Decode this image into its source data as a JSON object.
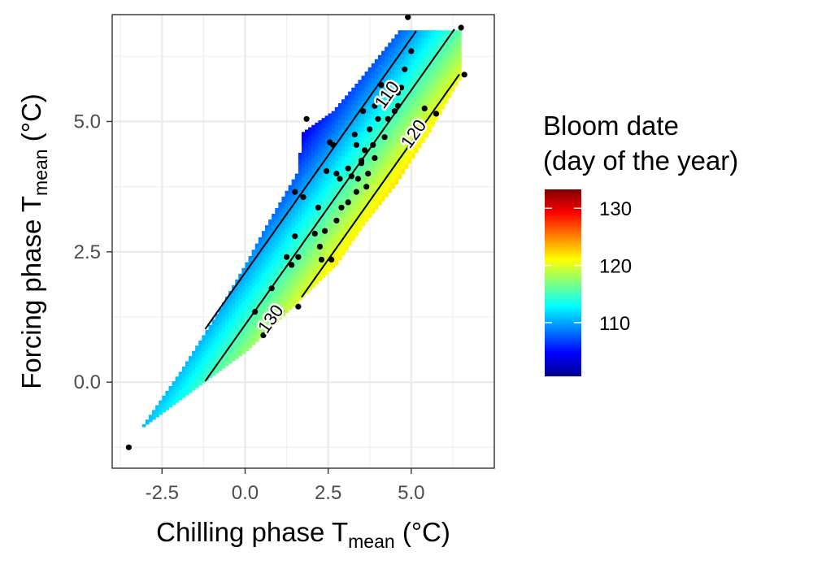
{
  "chart_data": {
    "type": "heatmap",
    "xlabel": {
      "main": "Chilling phase T",
      "sub": "mean",
      "unit": " (°C)"
    },
    "ylabel": {
      "main": "Forcing phase T",
      "sub": "mean",
      "unit": " (°C)"
    },
    "xlim": [
      -4.0,
      7.5
    ],
    "ylim": [
      -1.65,
      7.05
    ],
    "x_ticks": [
      -2.5,
      0.0,
      2.5,
      5.0
    ],
    "x_tick_labels": [
      "-2.5",
      "0.0",
      "2.5",
      "5.0"
    ],
    "y_ticks": [
      0.0,
      2.5,
      5.0
    ],
    "y_tick_labels": [
      "0.0",
      "2.5",
      "5.0"
    ],
    "grid": true,
    "legend": {
      "title_lines": [
        "Bloom date",
        "(day of the year)"
      ],
      "labels": [
        "130",
        "120",
        "110"
      ],
      "label_values": [
        130,
        120,
        110
      ],
      "range": [
        100.6,
        133.3
      ],
      "placement": "right"
    },
    "colorscale": [
      "#00008f",
      "#0000ff",
      "#0080ff",
      "#00ffff",
      "#80ff80",
      "#ffff00",
      "#ff8000",
      "#ff0000",
      "#800000"
    ],
    "surface": {
      "description_formula": "bloom = 120.5 + 4.5*x - 5*y",
      "region_lower_edge": [
        [
          -3.2,
          -0.9
        ],
        [
          0.0,
          0.6
        ],
        [
          2.7,
          2.25
        ],
        [
          3.5,
          3.0
        ],
        [
          4.5,
          3.8
        ],
        [
          5.5,
          4.8
        ],
        [
          6.4,
          5.8
        ]
      ],
      "region_upper_edge": [
        [
          -3.2,
          -0.9
        ],
        [
          -2.0,
          0.2
        ],
        [
          -1.0,
          1.2
        ],
        [
          0.0,
          2.3
        ],
        [
          0.5,
          2.9
        ],
        [
          1.5,
          4.0
        ],
        [
          1.7,
          4.8
        ],
        [
          2.6,
          5.2
        ],
        [
          3.4,
          5.8
        ],
        [
          4.6,
          6.75
        ],
        [
          6.4,
          6.75
        ]
      ]
    },
    "contours": [
      {
        "level": 130,
        "label": "130",
        "label_at": [
          0.8,
          1.2
        ]
      },
      {
        "level": 120,
        "label": "120",
        "label_at": [
          5.1,
          4.75
        ]
      },
      {
        "level": 110,
        "label": "110",
        "label_at": [
          4.3,
          5.5
        ]
      },
      {
        "level": 125,
        "label": ""
      },
      {
        "level": 115,
        "label": ""
      }
    ],
    "points": [
      [
        -3.5,
        -1.25
      ],
      [
        0.3,
        1.35
      ],
      [
        0.55,
        0.9
      ],
      [
        0.8,
        1.8
      ],
      [
        0.9,
        1.3
      ],
      [
        1.1,
        1.35
      ],
      [
        1.25,
        2.4
      ],
      [
        1.4,
        2.25
      ],
      [
        1.5,
        2.8
      ],
      [
        1.6,
        1.45
      ],
      [
        1.5,
        3.65
      ],
      [
        1.75,
        3.55
      ],
      [
        1.85,
        5.05
      ],
      [
        1.6,
        2.4
      ],
      [
        2.1,
        2.85
      ],
      [
        2.2,
        3.35
      ],
      [
        2.25,
        2.6
      ],
      [
        2.3,
        2.35
      ],
      [
        2.4,
        2.9
      ],
      [
        2.45,
        4.05
      ],
      [
        2.55,
        4.6
      ],
      [
        2.6,
        2.35
      ],
      [
        2.65,
        4.55
      ],
      [
        2.75,
        3.1
      ],
      [
        2.75,
        4.0
      ],
      [
        2.9,
        3.35
      ],
      [
        3.1,
        3.45
      ],
      [
        3.1,
        4.1
      ],
      [
        3.2,
        3.95
      ],
      [
        3.3,
        4.75
      ],
      [
        3.35,
        4.55
      ],
      [
        3.4,
        3.9
      ],
      [
        3.5,
        4.25
      ],
      [
        3.6,
        4.45
      ],
      [
        3.5,
        4.2
      ],
      [
        3.55,
        5.2
      ],
      [
        3.7,
        4.0
      ],
      [
        3.75,
        4.85
      ],
      [
        3.85,
        4.55
      ],
      [
        3.9,
        4.3
      ],
      [
        4.0,
        5.05
      ],
      [
        4.1,
        5.7
      ],
      [
        4.2,
        4.7
      ],
      [
        4.3,
        5.05
      ],
      [
        4.4,
        5.45
      ],
      [
        4.5,
        5.2
      ],
      [
        4.6,
        5.3
      ],
      [
        4.6,
        5.55
      ],
      [
        4.7,
        5.65
      ],
      [
        4.8,
        6.0
      ],
      [
        5.0,
        6.35
      ],
      [
        4.9,
        7.0
      ],
      [
        5.4,
        5.25
      ],
      [
        5.75,
        5.15
      ],
      [
        6.5,
        6.8
      ],
      [
        6.6,
        5.9
      ],
      [
        3.65,
        3.75
      ],
      [
        3.35,
        3.65
      ],
      [
        2.85,
        3.9
      ],
      [
        3.9,
        5.3
      ]
    ]
  }
}
